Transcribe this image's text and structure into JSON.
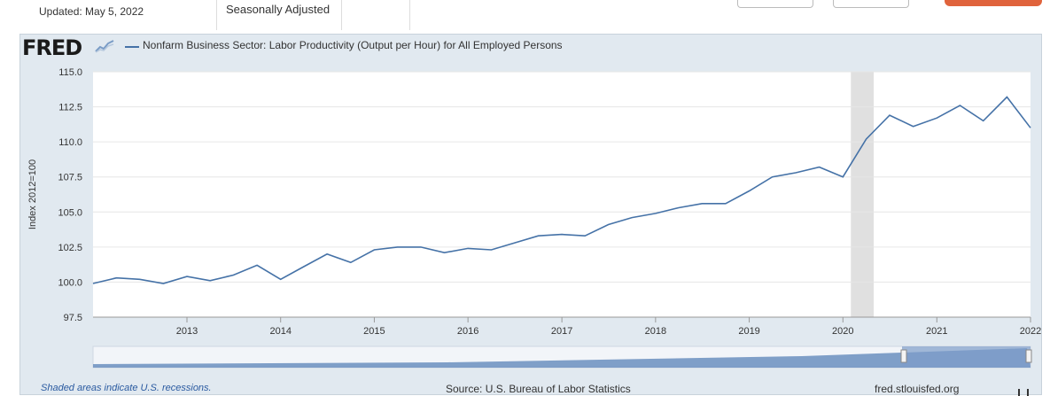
{
  "header": {
    "updated": "Updated: May 5, 2022",
    "seasonal": "Seasonally Adjusted"
  },
  "logo": {
    "text": "FRED"
  },
  "footer": {
    "note": "Shaded areas indicate U.S. recessions.",
    "source": "Source: U.S. Bureau of Labor Statistics",
    "url": "fred.stlouisfed.org"
  },
  "colors": {
    "line": "#4572a7",
    "recession": "#e0e0e0",
    "panel": "#e1e9f0"
  },
  "chart_data": {
    "type": "line",
    "title": "",
    "ylabel": "Index 2012=100",
    "xlabel": "",
    "ylim": [
      97.5,
      115.0
    ],
    "xlim": [
      "2012-01-01",
      "2022-01-01"
    ],
    "yticks": [
      "97.5",
      "100.0",
      "102.5",
      "105.0",
      "107.5",
      "110.0",
      "112.5",
      "115.0"
    ],
    "ytick_values": [
      97.5,
      100.0,
      102.5,
      105.0,
      107.5,
      110.0,
      112.5,
      115.0
    ],
    "xticks": [
      "2013",
      "2014",
      "2015",
      "2016",
      "2017",
      "2018",
      "2019",
      "2020",
      "2021",
      "2022"
    ],
    "xtick_dates": [
      "2013-01-01",
      "2014-01-01",
      "2015-01-01",
      "2016-01-01",
      "2017-01-01",
      "2018-01-01",
      "2019-01-01",
      "2020-01-01",
      "2021-01-01",
      "2022-01-01"
    ],
    "grid": true,
    "recessions": [
      [
        "2020-02-01",
        "2020-04-30"
      ]
    ],
    "series": [
      {
        "name": "Nonfarm Business Sector: Labor Productivity (Output per Hour) for All Employed Persons",
        "x": [
          "2012-01-01",
          "2012-04-01",
          "2012-07-01",
          "2012-10-01",
          "2013-01-01",
          "2013-04-01",
          "2013-07-01",
          "2013-10-01",
          "2014-01-01",
          "2014-04-01",
          "2014-07-01",
          "2014-10-01",
          "2015-01-01",
          "2015-04-01",
          "2015-07-01",
          "2015-10-01",
          "2016-01-01",
          "2016-04-01",
          "2016-07-01",
          "2016-10-01",
          "2017-01-01",
          "2017-04-01",
          "2017-07-01",
          "2017-10-01",
          "2018-01-01",
          "2018-04-01",
          "2018-07-01",
          "2018-10-01",
          "2019-01-01",
          "2019-04-01",
          "2019-07-01",
          "2019-10-01",
          "2020-01-01",
          "2020-04-01",
          "2020-07-01",
          "2020-10-01",
          "2021-01-01",
          "2021-04-01",
          "2021-07-01",
          "2021-10-01",
          "2022-01-01"
        ],
        "y": [
          99.9,
          100.3,
          100.2,
          99.9,
          100.4,
          100.1,
          100.5,
          101.2,
          100.2,
          101.1,
          102.0,
          101.4,
          102.3,
          102.5,
          102.5,
          102.1,
          102.4,
          102.3,
          102.8,
          103.3,
          103.4,
          103.3,
          104.1,
          104.6,
          104.9,
          105.3,
          105.6,
          105.6,
          106.5,
          107.5,
          107.8,
          108.2,
          107.5,
          110.2,
          111.9,
          111.1,
          111.7,
          112.6,
          111.5,
          113.2,
          111.0
        ]
      }
    ]
  }
}
